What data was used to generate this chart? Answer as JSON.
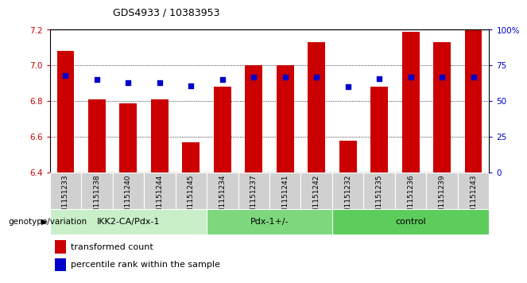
{
  "title": "GDS4933 / 10383953",
  "samples": [
    "GSM1151233",
    "GSM1151238",
    "GSM1151240",
    "GSM1151244",
    "GSM1151245",
    "GSM1151234",
    "GSM1151237",
    "GSM1151241",
    "GSM1151242",
    "GSM1151232",
    "GSM1151235",
    "GSM1151236",
    "GSM1151239",
    "GSM1151243"
  ],
  "bar_values": [
    7.08,
    6.81,
    6.79,
    6.81,
    6.57,
    6.88,
    7.0,
    7.0,
    7.13,
    6.58,
    6.88,
    7.19,
    7.13,
    7.2
  ],
  "blue_percentile": [
    68,
    65,
    63,
    63,
    61,
    65,
    67,
    67,
    67,
    60,
    66,
    67,
    67,
    67
  ],
  "groups": [
    {
      "label": "IKK2-CA/Pdx-1",
      "start": 0,
      "end": 5,
      "color": "#c8efc8"
    },
    {
      "label": "Pdx-1+/-",
      "start": 5,
      "end": 9,
      "color": "#7dd87d"
    },
    {
      "label": "control",
      "start": 9,
      "end": 14,
      "color": "#5ccc5c"
    }
  ],
  "ylim_left": [
    6.4,
    7.2
  ],
  "ylim_right": [
    0,
    100
  ],
  "yticks_left": [
    6.4,
    6.6,
    6.8,
    7.0,
    7.2
  ],
  "yticks_right": [
    0,
    25,
    50,
    75,
    100
  ],
  "bar_color": "#cc0000",
  "blue_color": "#0000cc",
  "bar_bottom": 6.4,
  "legend_items": [
    {
      "label": "transformed count",
      "color": "#cc0000"
    },
    {
      "label": "percentile rank within the sample",
      "color": "#0000cc"
    }
  ],
  "genotype_label": "genotype/variation",
  "tick_label_color_left": "#cc0000",
  "tick_label_color_right": "#0000cc",
  "cell_bg": "#d0d0d0"
}
